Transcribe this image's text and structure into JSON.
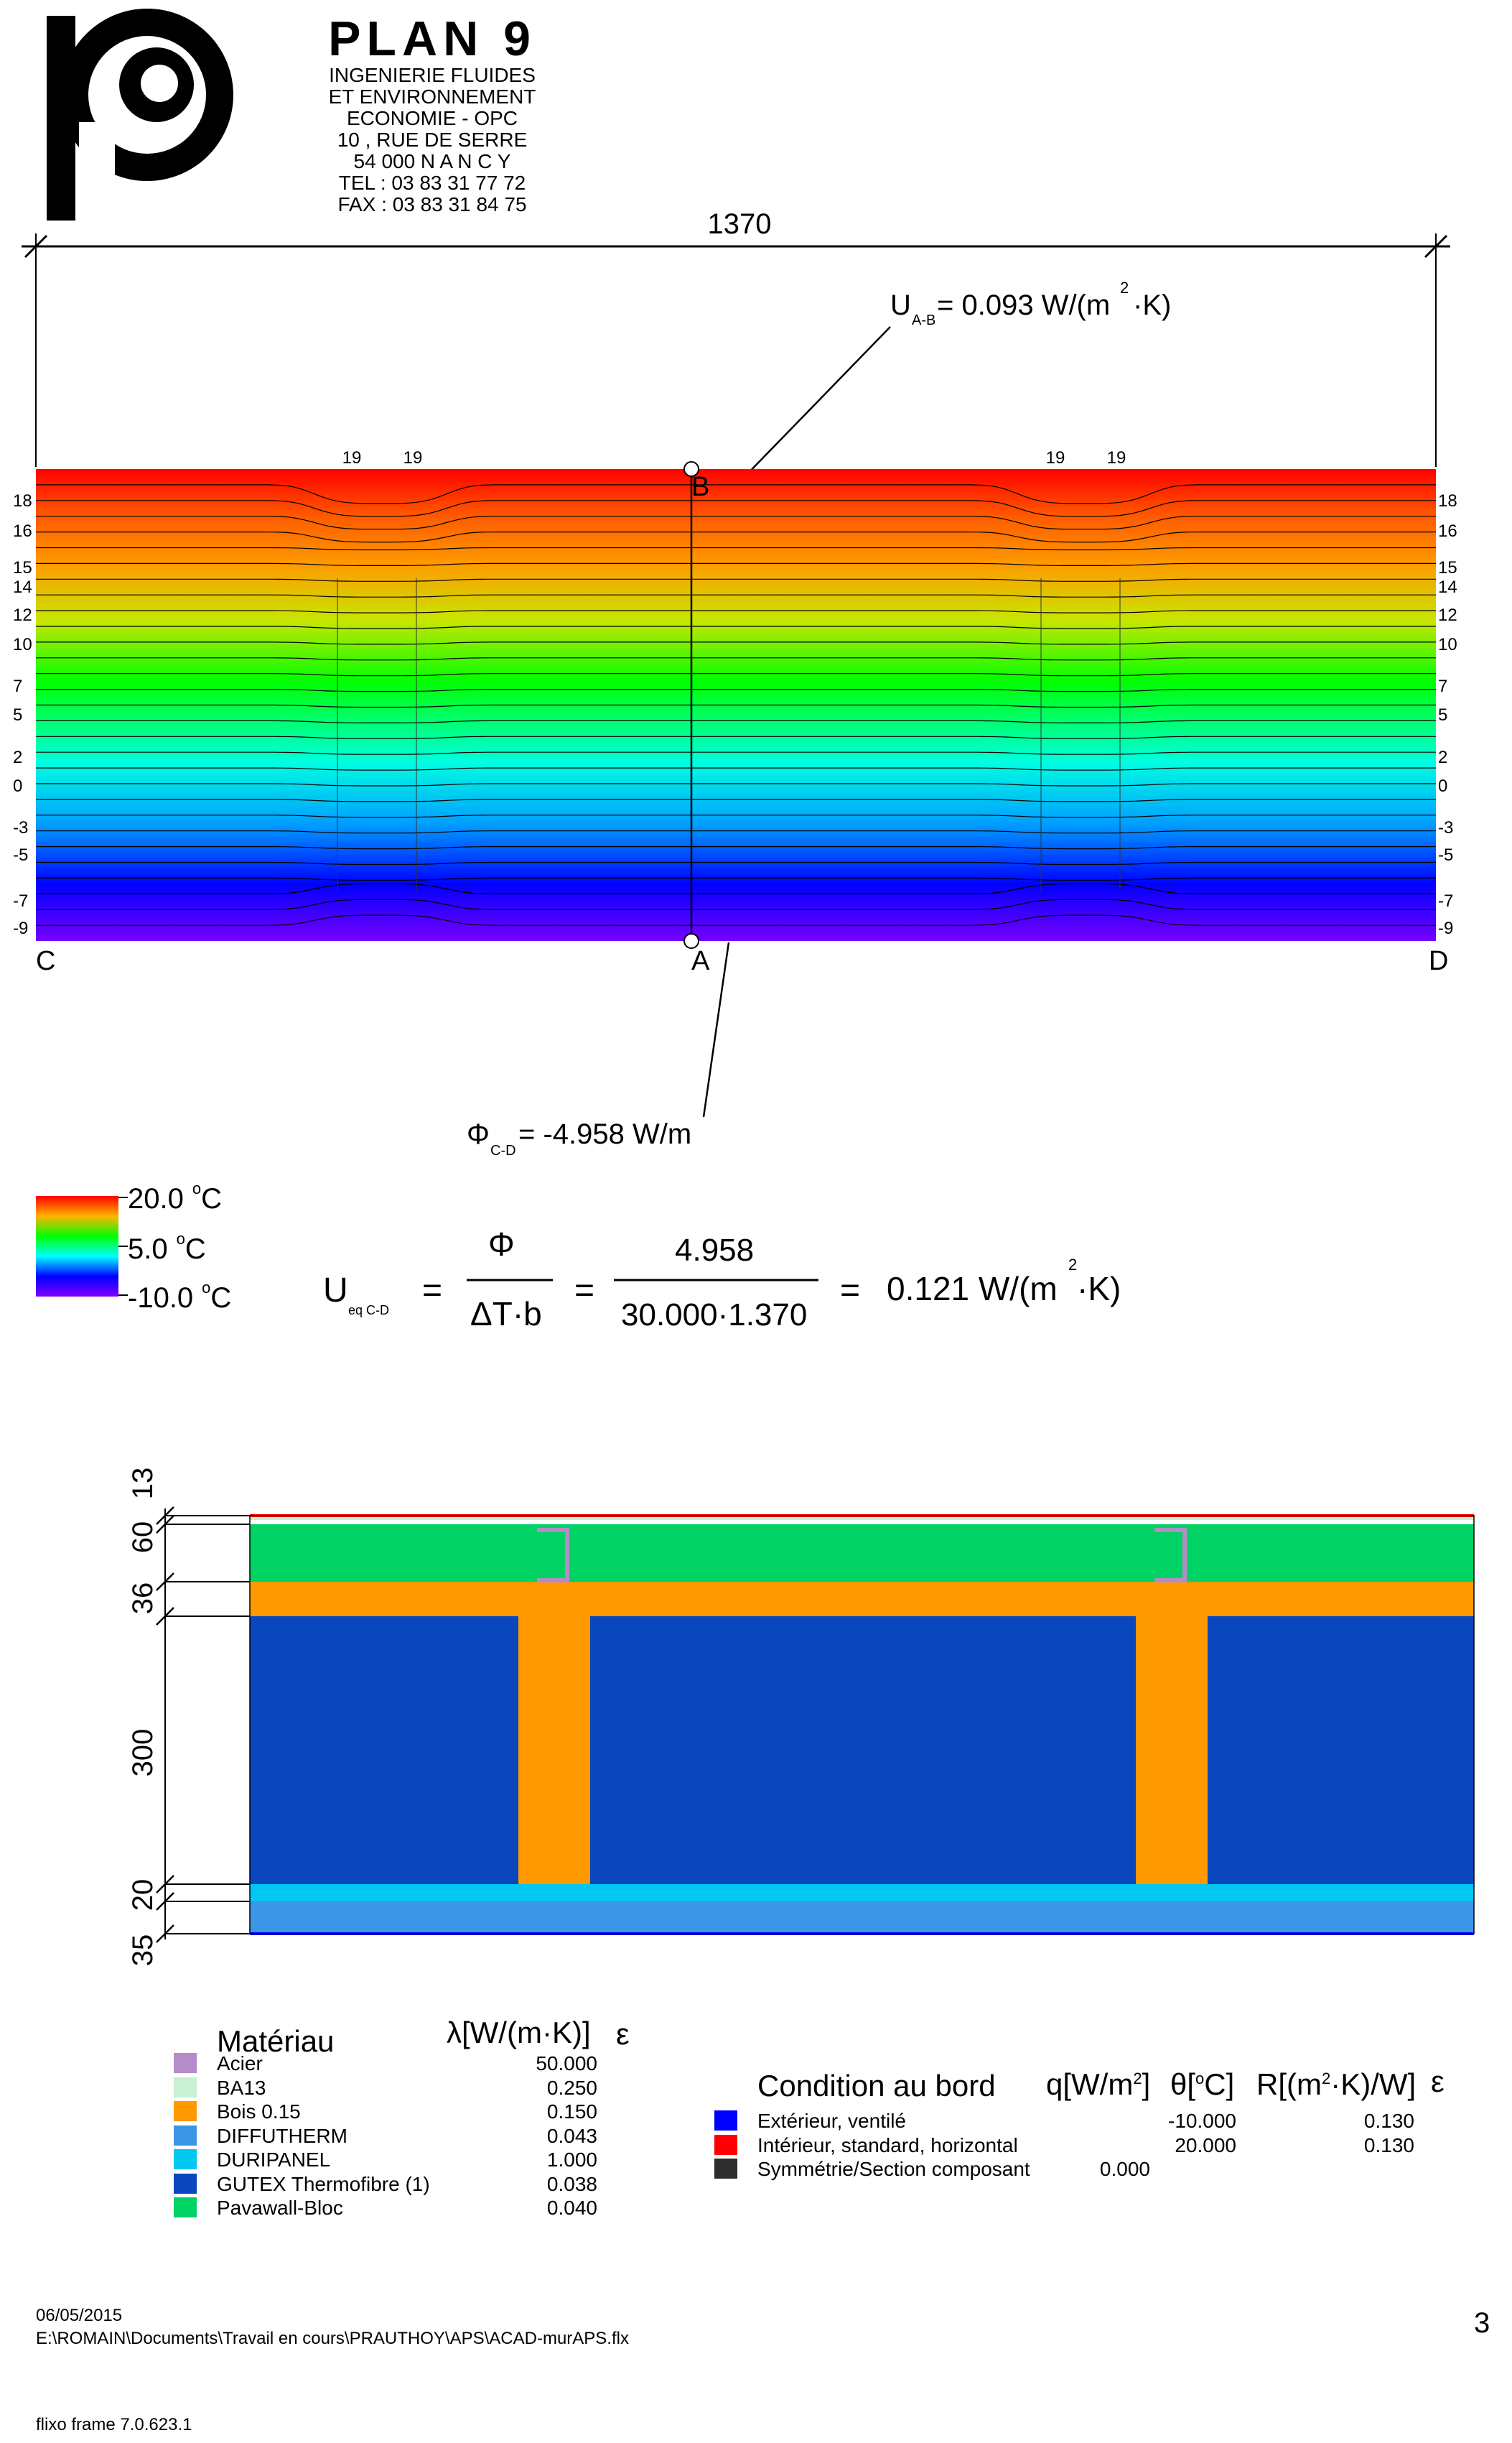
{
  "company": {
    "name": "PLAN 9",
    "lines": [
      "INGENIERIE FLUIDES",
      "ET ENVIRONNEMENT",
      "ECONOMIE    -    OPC",
      "10 , RUE DE SERRE",
      "54 000       N A N C Y",
      "TEL : 03 83 31 77 72",
      "FAX : 03 83 31 84 75"
    ]
  },
  "dimension_width": "1370",
  "u_ab": {
    "label": "U",
    "sub": "A-B",
    "value": "= 0.093 W/(m",
    "exp": "2",
    "tail": "·K)"
  },
  "phi_cd": {
    "label": "Φ",
    "sub": "C-D",
    "value": "= -4.958 W/m"
  },
  "points": {
    "a": "A",
    "b": "B",
    "c": "C",
    "d": "D"
  },
  "isotherm_labels_left": [
    "18",
    "16",
    "15",
    "14",
    "12",
    "10",
    "7",
    "5",
    "2",
    "0",
    "-3",
    "-5",
    "-7",
    "-9"
  ],
  "isotherm_labels_right": [
    "18",
    "16",
    "15",
    "14",
    "12",
    "10",
    "7",
    "5",
    "2",
    "0",
    "-3",
    "-5",
    "-7",
    "-9"
  ],
  "isotherm_labels_top": [
    "19",
    "19",
    "19",
    "19"
  ],
  "color_scale": {
    "max": "20.0",
    "mid": "5.0",
    "min": "-10.0",
    "unit_sup": "o",
    "unit": "C"
  },
  "formula": {
    "u": "U",
    "sub": "eq C-D",
    "phi": "Φ",
    "denom": "ΔT·b",
    "num_val": "4.958",
    "den_val": "30.000·1.370",
    "result": "0.121 W/(m",
    "exp": "2",
    "tail": "·K)",
    "eq": "="
  },
  "layer_dims": [
    "13",
    "60",
    "36",
    "300",
    "20",
    "35"
  ],
  "materials": {
    "header": "Matériau",
    "lambda_header": "λ[W/(m·K)]",
    "eps_header": "ε",
    "items": [
      {
        "name": "Acier",
        "lambda": "50.000",
        "color": "#b48cc8"
      },
      {
        "name": "BA13",
        "lambda": "0.250",
        "color": "#c8f0d2"
      },
      {
        "name": "Bois 0.15",
        "lambda": "0.150",
        "color": "#ff9900"
      },
      {
        "name": "DIFFUTHERM",
        "lambda": "0.043",
        "color": "#3c96e6"
      },
      {
        "name": "DURIPANEL",
        "lambda": "1.000",
        "color": "#00c8f0"
      },
      {
        "name": "GUTEX Thermofibre (1)",
        "lambda": "0.038",
        "color": "#0a46be"
      },
      {
        "name": "Pavawall-Bloc",
        "lambda": "0.040",
        "color": "#00d264"
      }
    ]
  },
  "boundary": {
    "header": "Condition au bord",
    "q_header": "q[W/m",
    "q_exp": "2",
    "q_tail": "]",
    "theta_header": "θ[",
    "theta_sup": "o",
    "theta_tail": "C]",
    "r_header": "R[(m",
    "r_exp": "2",
    "r_tail": "·K)/W]",
    "eps_header": "ε",
    "items": [
      {
        "name": "Extérieur, ventilé",
        "q": "",
        "theta": "-10.000",
        "r": "0.130",
        "color": "#0000ff"
      },
      {
        "name": "Intérieur, standard, horizontal",
        "q": "",
        "theta": "20.000",
        "r": "0.130",
        "color": "#ff0000"
      },
      {
        "name": "Symmétrie/Section composant",
        "q": "0.000",
        "theta": "",
        "r": "",
        "color": "#2d2d2d"
      }
    ]
  },
  "footer": {
    "date": "06/05/2015",
    "path": "E:\\ROMAIN\\Documents\\Travail en cours\\PRAUTHOY\\APS\\ACAD-murAPS.flx",
    "page": "3",
    "software": "flixo frame 7.0.623.1"
  }
}
